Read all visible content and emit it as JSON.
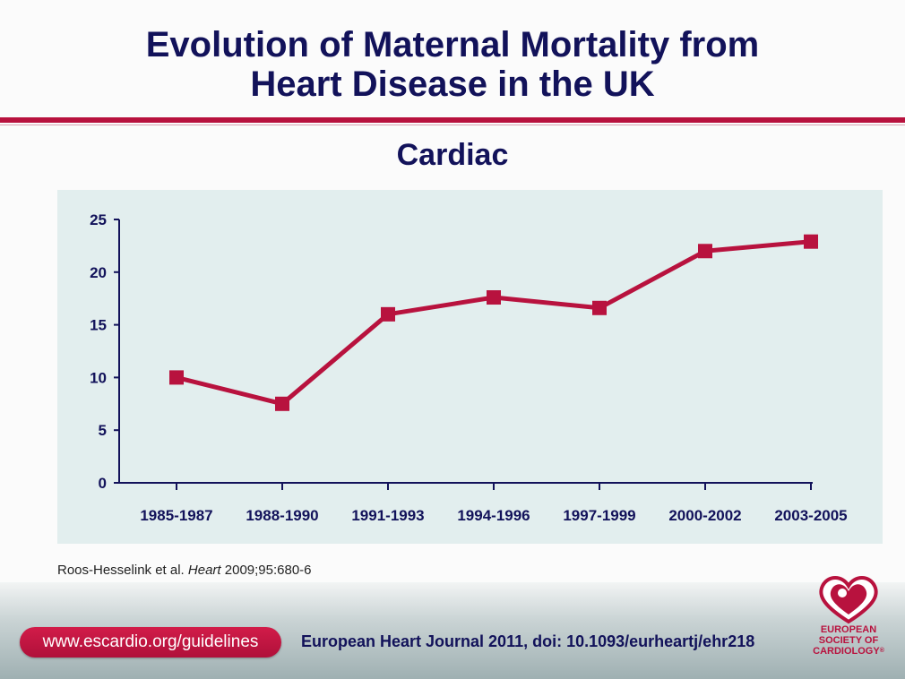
{
  "title": {
    "line1": "Evolution of Maternal Mortality from",
    "line2": "Heart Disease in the UK"
  },
  "chart_data": {
    "type": "line",
    "title": "Cardiac",
    "categories": [
      "1985-1987",
      "1988-1990",
      "1991-1993",
      "1994-1996",
      "1997-1999",
      "2000-2002",
      "2003-2005"
    ],
    "series": [
      {
        "name": "Cardiac",
        "values": [
          10,
          7.5,
          16,
          17.6,
          16.6,
          22,
          22.9
        ],
        "color": "#b8123e"
      }
    ],
    "ylim": [
      0,
      25
    ],
    "yticks": [
      "0",
      "5",
      "10",
      "15",
      "20",
      "25"
    ],
    "xlabel": "",
    "ylabel": "",
    "grid": false
  },
  "citation": {
    "authors": "Roos-Hesselink et al.",
    "journal": "Heart",
    "ref": "2009;95:680-6"
  },
  "footer": {
    "url": "www.escardio.org/guidelines",
    "journal_ref": "European Heart Journal 2011, doi: 10.1093/eurheartj/ehr218",
    "logo_line1": "EUROPEAN",
    "logo_line2": "SOCIETY OF",
    "logo_line3": "CARDIOLOGY",
    "logo_mark": "®"
  },
  "colors": {
    "accent": "#b8123e",
    "title": "#12125a",
    "panel": "#e2eeee"
  }
}
